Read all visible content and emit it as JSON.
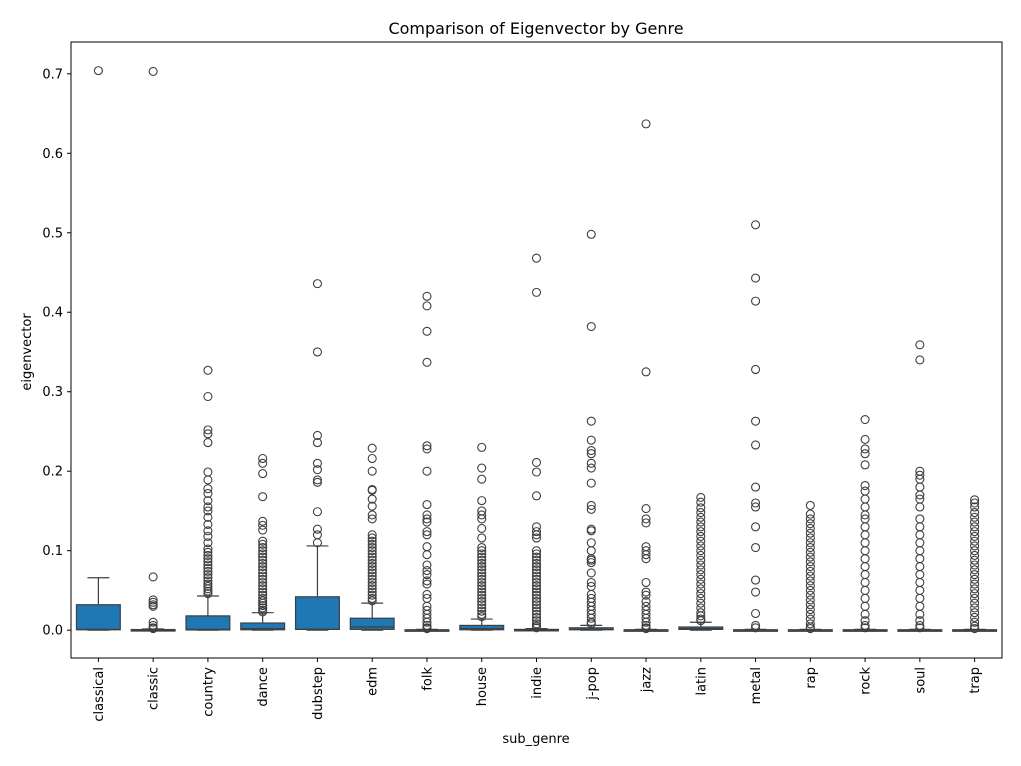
{
  "chart_data": {
    "type": "box",
    "title": "Comparison of Eigenvector by Genre",
    "xlabel": "sub_genre",
    "ylabel": "eigenvector",
    "ylim": [
      -0.035,
      0.74
    ],
    "yticks": [
      0.0,
      0.1,
      0.2,
      0.3,
      0.4,
      0.5,
      0.6,
      0.7
    ],
    "ytick_labels": [
      "0.0",
      "0.1",
      "0.2",
      "0.3",
      "0.4",
      "0.5",
      "0.6",
      "0.7"
    ],
    "grid": false,
    "box_color": "#1f77b4",
    "categories": [
      "classical",
      "classic",
      "country",
      "dance",
      "dubstep",
      "edm",
      "folk",
      "house",
      "indie",
      "j-pop",
      "jazz",
      "latin",
      "metal",
      "rap",
      "rock",
      "soul",
      "trap"
    ],
    "boxes": [
      {
        "category": "classical",
        "whislo": 0.0,
        "q1": 0.0005,
        "med": 0.001,
        "q3": 0.032,
        "whishi": 0.066,
        "fliers": [
          0.704
        ]
      },
      {
        "category": "classic",
        "whislo": 0.0,
        "q1": 0.0,
        "med": 0.0003,
        "q3": 0.0008,
        "whishi": 0.0015,
        "fliers": [
          0.703,
          0.067,
          0.038,
          0.035,
          0.032,
          0.03,
          0.01,
          0.006,
          0.003,
          0.002
        ]
      },
      {
        "category": "country",
        "whislo": 0.0,
        "q1": 0.0003,
        "med": 0.001,
        "q3": 0.018,
        "whishi": 0.043,
        "fliers": [
          0.327,
          0.294,
          0.252,
          0.247,
          0.236,
          0.199,
          0.189,
          0.178,
          0.172,
          0.163,
          0.155,
          0.15,
          0.142,
          0.133,
          0.125,
          0.118,
          0.11,
          0.102,
          0.098,
          0.094,
          0.09,
          0.086,
          0.082,
          0.078,
          0.074,
          0.07,
          0.066,
          0.062,
          0.058,
          0.055,
          0.052,
          0.049,
          0.046
        ]
      },
      {
        "category": "dance",
        "whislo": 0.0,
        "q1": 0.0005,
        "med": 0.002,
        "q3": 0.009,
        "whishi": 0.022,
        "fliers": [
          0.216,
          0.21,
          0.197,
          0.168,
          0.137,
          0.132,
          0.126,
          0.112,
          0.108,
          0.104,
          0.1,
          0.096,
          0.092,
          0.088,
          0.084,
          0.08,
          0.076,
          0.072,
          0.068,
          0.064,
          0.06,
          0.056,
          0.052,
          0.048,
          0.044,
          0.04,
          0.037,
          0.034,
          0.031,
          0.028,
          0.025,
          0.023
        ]
      },
      {
        "category": "dubstep",
        "whislo": 0.0,
        "q1": 0.001,
        "med": 0.001,
        "q3": 0.042,
        "whishi": 0.106,
        "fliers": [
          0.436,
          0.35,
          0.245,
          0.236,
          0.21,
          0.202,
          0.189,
          0.186,
          0.149,
          0.127,
          0.12,
          0.11
        ]
      },
      {
        "category": "edm",
        "whislo": 0.0,
        "q1": 0.001,
        "med": 0.004,
        "q3": 0.015,
        "whishi": 0.034,
        "fliers": [
          0.229,
          0.216,
          0.2,
          0.177,
          0.176,
          0.165,
          0.156,
          0.145,
          0.14,
          0.12,
          0.116,
          0.112,
          0.108,
          0.104,
          0.1,
          0.096,
          0.092,
          0.088,
          0.084,
          0.08,
          0.076,
          0.072,
          0.068,
          0.064,
          0.06,
          0.056,
          0.052,
          0.048,
          0.044,
          0.04,
          0.037
        ]
      },
      {
        "category": "folk",
        "whislo": 0.0,
        "q1": 0.0,
        "med": 0.0002,
        "q3": 0.0005,
        "whishi": 0.001,
        "fliers": [
          0.42,
          0.408,
          0.376,
          0.337,
          0.232,
          0.228,
          0.2,
          0.158,
          0.145,
          0.14,
          0.136,
          0.124,
          0.12,
          0.105,
          0.095,
          0.082,
          0.075,
          0.07,
          0.062,
          0.058,
          0.045,
          0.04,
          0.03,
          0.025,
          0.02,
          0.015,
          0.01,
          0.006,
          0.003,
          0.002
        ]
      },
      {
        "category": "house",
        "whislo": 0.0,
        "q1": 0.0005,
        "med": 0.002,
        "q3": 0.006,
        "whishi": 0.014,
        "fliers": [
          0.23,
          0.204,
          0.19,
          0.163,
          0.15,
          0.145,
          0.14,
          0.128,
          0.116,
          0.104,
          0.1,
          0.096,
          0.092,
          0.088,
          0.084,
          0.08,
          0.076,
          0.072,
          0.068,
          0.064,
          0.06,
          0.056,
          0.052,
          0.048,
          0.044,
          0.04,
          0.036,
          0.032,
          0.028,
          0.024,
          0.02,
          0.017
        ]
      },
      {
        "category": "indie",
        "whislo": 0.0,
        "q1": 0.0,
        "med": 0.0003,
        "q3": 0.001,
        "whishi": 0.002,
        "fliers": [
          0.468,
          0.425,
          0.211,
          0.199,
          0.169,
          0.13,
          0.124,
          0.12,
          0.116,
          0.1,
          0.096,
          0.092,
          0.088,
          0.084,
          0.08,
          0.076,
          0.072,
          0.068,
          0.064,
          0.06,
          0.056,
          0.052,
          0.048,
          0.044,
          0.04,
          0.036,
          0.032,
          0.028,
          0.024,
          0.02,
          0.016,
          0.012,
          0.008,
          0.005,
          0.003
        ]
      },
      {
        "category": "j-pop",
        "whislo": 0.0,
        "q1": 0.0005,
        "med": 0.001,
        "q3": 0.003,
        "whishi": 0.006,
        "fliers": [
          0.498,
          0.382,
          0.263,
          0.239,
          0.226,
          0.222,
          0.21,
          0.204,
          0.185,
          0.157,
          0.152,
          0.127,
          0.125,
          0.11,
          0.1,
          0.09,
          0.088,
          0.085,
          0.072,
          0.06,
          0.055,
          0.045,
          0.04,
          0.035,
          0.03,
          0.025,
          0.02,
          0.015,
          0.01,
          0.008
        ]
      },
      {
        "category": "jazz",
        "whislo": 0.0,
        "q1": 0.0,
        "med": 0.0002,
        "q3": 0.0005,
        "whishi": 0.001,
        "fliers": [
          0.637,
          0.325,
          0.153,
          0.14,
          0.135,
          0.105,
          0.1,
          0.095,
          0.09,
          0.06,
          0.048,
          0.044,
          0.036,
          0.03,
          0.025,
          0.02,
          0.015,
          0.01,
          0.006,
          0.003,
          0.002
        ]
      },
      {
        "category": "latin",
        "whislo": 0.0,
        "q1": 0.001,
        "med": 0.002,
        "q3": 0.004,
        "whishi": 0.01,
        "fliers": [
          0.167,
          0.161,
          0.154,
          0.148,
          0.142,
          0.136,
          0.13,
          0.124,
          0.118,
          0.112,
          0.106,
          0.1,
          0.094,
          0.088,
          0.082,
          0.076,
          0.07,
          0.064,
          0.058,
          0.052,
          0.046,
          0.04,
          0.034,
          0.028,
          0.022,
          0.018,
          0.014,
          0.012
        ]
      },
      {
        "category": "metal",
        "whislo": 0.0,
        "q1": 0.0,
        "med": 0.0002,
        "q3": 0.0005,
        "whishi": 0.001,
        "fliers": [
          0.51,
          0.443,
          0.414,
          0.328,
          0.263,
          0.233,
          0.18,
          0.16,
          0.155,
          0.13,
          0.104,
          0.063,
          0.048,
          0.021,
          0.006,
          0.003
        ]
      },
      {
        "category": "rap",
        "whislo": 0.0,
        "q1": 0.0,
        "med": 0.0002,
        "q3": 0.0005,
        "whishi": 0.001,
        "fliers": [
          0.157,
          0.146,
          0.14,
          0.134,
          0.128,
          0.122,
          0.116,
          0.11,
          0.104,
          0.098,
          0.092,
          0.086,
          0.08,
          0.074,
          0.068,
          0.062,
          0.056,
          0.05,
          0.044,
          0.038,
          0.032,
          0.026,
          0.02,
          0.014,
          0.008,
          0.004,
          0.002
        ]
      },
      {
        "category": "rock",
        "whislo": 0.0,
        "q1": 0.0,
        "med": 0.0002,
        "q3": 0.0005,
        "whishi": 0.001,
        "fliers": [
          0.265,
          0.24,
          0.228,
          0.222,
          0.208,
          0.182,
          0.175,
          0.165,
          0.155,
          0.145,
          0.14,
          0.13,
          0.12,
          0.11,
          0.1,
          0.09,
          0.08,
          0.07,
          0.06,
          0.05,
          0.04,
          0.03,
          0.02,
          0.012,
          0.006,
          0.003
        ]
      },
      {
        "category": "soul",
        "whislo": 0.0,
        "q1": 0.0,
        "med": 0.0002,
        "q3": 0.0005,
        "whishi": 0.001,
        "fliers": [
          0.359,
          0.34,
          0.2,
          0.195,
          0.19,
          0.18,
          0.17,
          0.165,
          0.155,
          0.14,
          0.13,
          0.12,
          0.11,
          0.1,
          0.09,
          0.08,
          0.07,
          0.06,
          0.05,
          0.04,
          0.03,
          0.02,
          0.012,
          0.006,
          0.003
        ]
      },
      {
        "category": "trap",
        "whislo": 0.0,
        "q1": 0.0,
        "med": 0.0002,
        "q3": 0.0005,
        "whishi": 0.001,
        "fliers": [
          0.164,
          0.16,
          0.155,
          0.148,
          0.142,
          0.136,
          0.13,
          0.124,
          0.118,
          0.112,
          0.106,
          0.1,
          0.094,
          0.088,
          0.082,
          0.076,
          0.07,
          0.064,
          0.058,
          0.052,
          0.046,
          0.04,
          0.034,
          0.028,
          0.022,
          0.016,
          0.01,
          0.005,
          0.002
        ]
      }
    ]
  }
}
